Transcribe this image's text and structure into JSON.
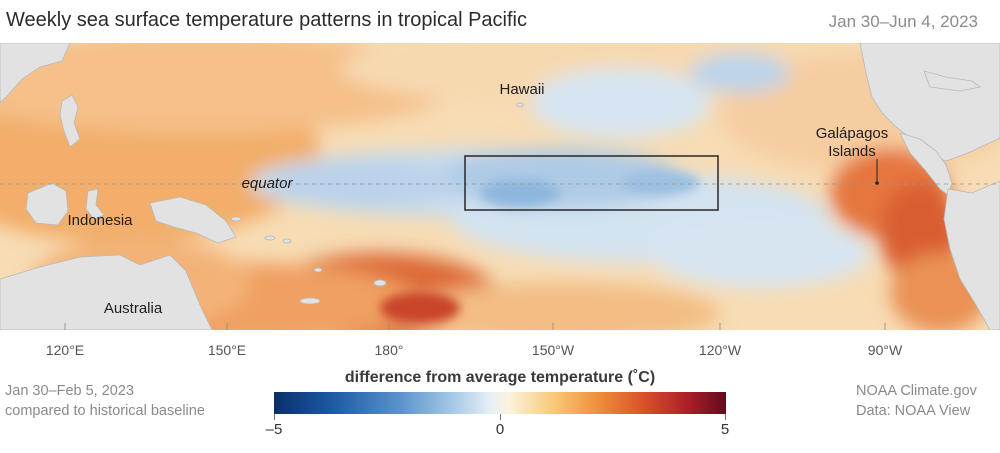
{
  "title": "Weekly sea surface temperature patterns in tropical Pacific",
  "date_range": "Jan 30–Jun 4, 2023",
  "map_labels": {
    "hawaii": "Hawaii",
    "galapagos": [
      "Galápagos",
      "Islands"
    ],
    "equator": "equator",
    "indonesia": "Indonesia",
    "australia": "Australia"
  },
  "longitudes": [
    "120°E",
    "150°E",
    "180°",
    "150°W",
    "120°W",
    "90°W"
  ],
  "footer_left": [
    "Jan 30–Feb 5, 2023",
    "compared to historical baseline"
  ],
  "footer_right": [
    "NOAA Climate.gov",
    "Data: NOAA View"
  ],
  "legend": {
    "title": "difference from average temperature (˚C)",
    "ticks": [
      "–5",
      "0",
      "5"
    ],
    "range": [
      -5,
      5
    ]
  },
  "colors": {
    "land": "#e2e2e2",
    "cold_max": "#0a2f6b",
    "neutral": "#f5f2ea",
    "warm_max": "#5e0c1e",
    "box_outline": "#333333"
  }
}
